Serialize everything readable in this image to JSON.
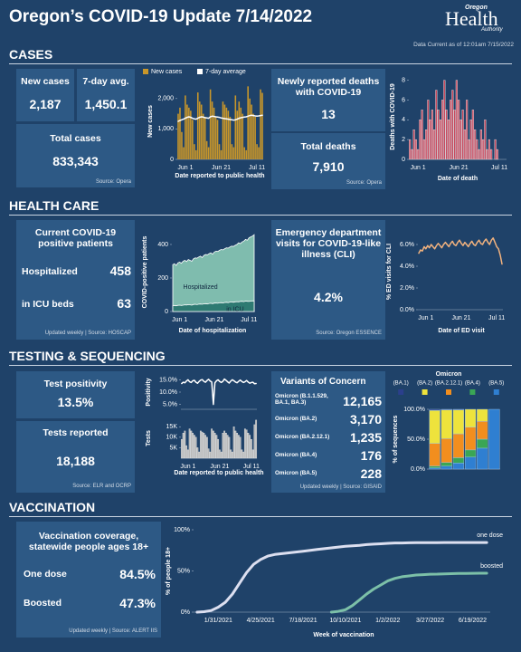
{
  "header": {
    "title": "Oregon’s COVID-19 Update 7/14/2022",
    "logo": [
      "Oregon",
      "Health",
      "Authority"
    ],
    "data_current": "Data Current as of 12:01am 7/15/2022"
  },
  "cases": {
    "heading": "CASES",
    "new_cases": {
      "label": "New cases",
      "value": "2,187"
    },
    "avg": {
      "label": "7-day avg.",
      "value": "1,450.1"
    },
    "total": {
      "label": "Total cases",
      "value": "833,343"
    },
    "source": "Source: Opera",
    "chart": {
      "type": "bar-line",
      "y_label": "New cases",
      "x_label": "Date reported to public health",
      "categories": [
        null,
        null,
        null,
        null,
        "Jun 1",
        null,
        null,
        null,
        null,
        null,
        null,
        null,
        null,
        null,
        null,
        null,
        null,
        null,
        null,
        null,
        null,
        null,
        null,
        null,
        "Jun 21",
        null,
        null,
        null,
        null,
        null,
        null,
        null,
        null,
        null,
        null,
        null,
        null,
        null,
        null,
        null,
        null,
        null,
        null,
        null,
        "Jul 11",
        null,
        null,
        null
      ],
      "ylim": [
        0,
        2500
      ],
      "yticks": [
        0,
        {
          "value": 1000,
          "label": "1,000"
        },
        {
          "value": 2000,
          "label": "2,000"
        }
      ],
      "series": [
        {
          "name": "New cases",
          "color": "#c8962a",
          "values": [
            1500,
            1700,
            900,
            400,
            2100,
            1800,
            1700,
            1600,
            1300,
            500,
            300,
            2200,
            1900,
            1800,
            1500,
            1400,
            600,
            400,
            2300,
            1900,
            1700,
            1400,
            1300,
            500,
            300,
            1900,
            1800,
            1700,
            1600,
            1400,
            500,
            400,
            2100,
            1600,
            1900,
            1700,
            1500,
            400,
            300,
            2400,
            2000,
            1800,
            1500,
            1400,
            500,
            400,
            2300,
            2187
          ]
        },
        {
          "name": "7-day average",
          "color": "#ffffff",
          "values": [
            1250,
            1280,
            1300,
            1320,
            1350,
            1380,
            1400,
            1380,
            1350,
            1330,
            1320,
            1350,
            1380,
            1400,
            1390,
            1370,
            1360,
            1350,
            1400,
            1420,
            1410,
            1400,
            1390,
            1380,
            1360,
            1350,
            1340,
            1330,
            1320,
            1310,
            1300,
            1290,
            1300,
            1320,
            1350,
            1370,
            1380,
            1390,
            1400,
            1420,
            1440,
            1450,
            1440,
            1430,
            1420,
            1430,
            1440,
            1450.1
          ]
        }
      ]
    },
    "deaths": {
      "new": {
        "label": "Newly reported deaths with COVID-19",
        "value": "13"
      },
      "total": {
        "label": "Total deaths",
        "value": "7,910"
      },
      "source": "Source: Opera"
    },
    "deaths_chart": {
      "type": "bar",
      "y_label": "Deaths with COVID-19",
      "x_label": "Date of death",
      "categories": [
        null,
        null,
        null,
        null,
        "Jun 1",
        null,
        null,
        null,
        null,
        null,
        null,
        null,
        null,
        null,
        null,
        null,
        null,
        null,
        null,
        null,
        null,
        null,
        null,
        null,
        "Jun 21",
        null,
        null,
        null,
        null,
        null,
        null,
        null,
        null,
        null,
        null,
        null,
        null,
        null,
        null,
        null,
        null,
        null,
        null,
        null,
        "Jul 11",
        null,
        null,
        null
      ],
      "ylim": [
        0,
        8.6
      ],
      "yticks": [
        0,
        2,
        4,
        6,
        8
      ],
      "color": "#c9495e",
      "values": [
        2,
        1,
        3,
        2,
        1,
        4,
        5,
        2,
        3,
        6,
        4,
        5,
        3,
        7,
        5,
        4,
        6,
        8,
        5,
        4,
        6,
        7,
        5,
        8,
        6,
        4,
        5,
        3,
        6,
        2,
        4,
        5,
        3,
        2,
        1,
        3,
        2,
        4,
        1,
        2,
        1,
        0,
        2,
        1,
        0,
        0,
        0,
        0
      ]
    }
  },
  "health": {
    "heading": "HEALTH CARE",
    "patients": {
      "title": "Current COVID-19 positive patients",
      "hospitalized": {
        "label": "Hospitalized",
        "value": "458"
      },
      "icu": {
        "label": "in ICU beds",
        "value": "63"
      },
      "source": "Updated weekly | Source: HOSCAP"
    },
    "hosp_chart": {
      "type": "area",
      "y_label": "COVID-positive patients",
      "x_label": "Date of hospitalization",
      "categories": [
        null,
        null,
        null,
        null,
        "Jun 1",
        null,
        null,
        null,
        null,
        null,
        null,
        null,
        null,
        null,
        null,
        null,
        null,
        null,
        null,
        null,
        null,
        null,
        null,
        null,
        "Jun 21",
        null,
        null,
        null,
        null,
        null,
        null,
        null,
        null,
        null,
        null,
        null,
        null,
        null,
        null,
        null,
        null,
        null,
        null,
        null,
        "Jul 11",
        null,
        null,
        null
      ],
      "ylim": [
        0,
        470
      ],
      "yticks": [
        0,
        200,
        400
      ],
      "series": [
        {
          "name": "Hospitalized",
          "color": "#7fbcae",
          "values": [
            280,
            285,
            275,
            290,
            295,
            288,
            300,
            305,
            298,
            310,
            305,
            300,
            315,
            320,
            318,
            325,
            330,
            322,
            335,
            340,
            338,
            345,
            350,
            342,
            355,
            360,
            358,
            365,
            370,
            368,
            375,
            380,
            378,
            385,
            390,
            388,
            395,
            400,
            410,
            405,
            415,
            420,
            430,
            425,
            440,
            445,
            450,
            458
          ]
        },
        {
          "name": "in ICU",
          "color": "#2e7a72",
          "values": [
            35,
            36,
            34,
            37,
            38,
            36,
            38,
            40,
            39,
            41,
            40,
            38,
            42,
            43,
            41,
            44,
            45,
            43,
            46,
            47,
            45,
            48,
            49,
            47,
            50,
            51,
            49,
            52,
            53,
            51,
            54,
            55,
            53,
            56,
            57,
            55,
            58,
            59,
            58,
            60,
            61,
            59,
            62,
            61,
            60,
            62,
            63,
            63
          ]
        }
      ]
    },
    "ed": {
      "title": "Emergency department visits for COVID-19-like illness (CLI)",
      "value": "4.2%",
      "source": "Source: Oregon ESSENCE"
    },
    "ed_chart": {
      "type": "line",
      "y_label": "% ED visits for CLI",
      "x_label": "Date of ED visit",
      "categories": [
        null,
        null,
        null,
        null,
        "Jun 1",
        null,
        null,
        null,
        null,
        null,
        null,
        null,
        null,
        null,
        null,
        null,
        null,
        null,
        null,
        null,
        null,
        null,
        null,
        null,
        "Jun 21",
        null,
        null,
        null,
        null,
        null,
        null,
        null,
        null,
        null,
        null,
        null,
        null,
        null,
        null,
        null,
        null,
        null,
        null,
        null,
        "Jul 11",
        null,
        null,
        null
      ],
      "ylim": [
        0,
        7
      ],
      "yticks": [
        {
          "value": 0,
          "label": "0.0%"
        },
        {
          "value": 2,
          "label": "2.0%"
        },
        {
          "value": 4,
          "label": "4.0%"
        },
        {
          "value": 6,
          "label": "6.0%"
        }
      ],
      "color": "#f2b27e",
      "values": [
        5.2,
        5.5,
        5.4,
        5.8,
        5.6,
        5.9,
        5.7,
        6.0,
        5.8,
        5.6,
        5.9,
        6.1,
        5.9,
        5.7,
        6.0,
        6.2,
        6.0,
        5.8,
        6.1,
        6.3,
        6.0,
        5.9,
        6.2,
        6.4,
        6.1,
        5.9,
        6.2,
        6.0,
        5.8,
        6.1,
        6.3,
        6.0,
        5.9,
        6.2,
        6.4,
        6.1,
        6.0,
        6.3,
        6.5,
        6.2,
        6.0,
        6.4,
        6.6,
        6.2,
        5.8,
        5.6,
        5.0,
        4.2
      ]
    }
  },
  "testing": {
    "heading": "TESTING & SEQUENCING",
    "positivity": {
      "label": "Test positivity",
      "value": "13.5%"
    },
    "tests": {
      "label": "Tests reported",
      "value": "18,188"
    },
    "source": "Source: ELR and OCRP",
    "positivity_chart": {
      "type": "line",
      "y_label": "Positivity",
      "categories": [
        null,
        null,
        null,
        null,
        null,
        null,
        null,
        null,
        null,
        null,
        null,
        null,
        null,
        null,
        null,
        null,
        null,
        null,
        null,
        null,
        null,
        null,
        null,
        null,
        null,
        null,
        null,
        null,
        null,
        null,
        null,
        null,
        null,
        null,
        null,
        null,
        null,
        null,
        null,
        null,
        null,
        null,
        null,
        null,
        null,
        null,
        null,
        null
      ],
      "ylim": [
        3,
        17
      ],
      "yticks": [
        {
          "value": 5,
          "label": "5.0%"
        },
        {
          "value": 10,
          "label": "10.0%"
        },
        {
          "value": 15,
          "label": "15.0%"
        }
      ],
      "color": "#ffffff",
      "values": [
        13.5,
        14.0,
        13.8,
        14.5,
        15.0,
        14.2,
        13.9,
        14.6,
        14.8,
        14.0,
        13.6,
        14.3,
        14.9,
        15.1,
        14.4,
        14.0,
        14.7,
        15.2,
        14.5,
        14.1,
        5.0,
        13.8,
        14.6,
        15.0,
        14.3,
        13.9,
        14.4,
        15.3,
        14.8,
        14.2,
        13.7,
        14.5,
        15.0,
        14.6,
        14.1,
        13.8,
        14.4,
        14.9,
        14.3,
        13.9,
        14.2,
        14.7,
        14.1,
        13.6,
        13.9,
        14.0,
        13.4,
        13.5
      ]
    },
    "tests_chart": {
      "type": "bar",
      "y_label": "Tests",
      "x_label": "Date reported to public health",
      "categories": [
        null,
        null,
        null,
        null,
        "Jun 1",
        null,
        null,
        null,
        null,
        null,
        null,
        null,
        null,
        null,
        null,
        null,
        null,
        null,
        null,
        null,
        null,
        null,
        null,
        null,
        "Jun 21",
        null,
        null,
        null,
        null,
        null,
        null,
        null,
        null,
        null,
        null,
        null,
        null,
        null,
        null,
        null,
        null,
        null,
        null,
        null,
        "Jul 11",
        null,
        null,
        null
      ],
      "ylim": [
        0,
        19000
      ],
      "yticks": [
        {
          "value": 5000,
          "label": "5K"
        },
        {
          "value": 10000,
          "label": "10K"
        },
        {
          "value": 15000,
          "label": "15K"
        }
      ],
      "color": "#b4b4b4",
      "values": [
        9000,
        12000,
        13000,
        6000,
        4000,
        14000,
        13000,
        12000,
        11000,
        10000,
        5000,
        3000,
        13000,
        12500,
        12000,
        11000,
        10000,
        4500,
        3000,
        14000,
        13000,
        12000,
        11000,
        9000,
        4000,
        3000,
        12000,
        13000,
        12000,
        11000,
        10000,
        4000,
        3000,
        15000,
        13000,
        12000,
        11000,
        10000,
        4000,
        3000,
        14000,
        13500,
        12000,
        11000,
        9000,
        4000,
        16000,
        18188
      ]
    },
    "variants": {
      "title": "Variants of Concern",
      "rows": [
        {
          "name": "Omicron (B.1.1.529, BA.1, BA.3)",
          "value": "12,165"
        },
        {
          "name": "Omicron (BA.2)",
          "value": "3,170"
        },
        {
          "name": "Omicron (BA.2.12.1)",
          "value": "1,235"
        },
        {
          "name": "Omicron (BA.4)",
          "value": "176"
        },
        {
          "name": "Omicron (BA.5)",
          "value": "228"
        }
      ],
      "source": "Updated weekly | Source: GISAID"
    },
    "variants_chart": {
      "type": "stacked-bar",
      "y_label": "% of sequences",
      "legend_title": "Omicron",
      "categories": [
        null,
        null,
        null,
        null,
        null,
        null
      ],
      "ylim": [
        0,
        100
      ],
      "yticks": [
        {
          "value": 0,
          "label": "0.0%"
        },
        {
          "value": 50,
          "label": "50.0%"
        },
        {
          "value": 100,
          "label": "100.0%"
        }
      ],
      "series": [
        {
          "name": "(BA.1)",
          "color": "#2b3f8c",
          "values": [
            2,
            1,
            1,
            0,
            0,
            0
          ]
        },
        {
          "name": "(BA.2)",
          "color": "#eee33c",
          "values": [
            55,
            48,
            40,
            30,
            20,
            0
          ]
        },
        {
          "name": "(BA.2.12.1)",
          "color": "#f28e1e",
          "values": [
            38,
            40,
            40,
            38,
            30,
            0
          ]
        },
        {
          "name": "(BA.4)",
          "color": "#3aa655",
          "values": [
            3,
            6,
            9,
            12,
            15,
            0
          ]
        },
        {
          "name": "(BA.5)",
          "color": "#2f7fd1",
          "values": [
            2,
            5,
            10,
            20,
            35,
            100
          ]
        }
      ]
    }
  },
  "vaccination": {
    "heading": "VACCINATION",
    "coverage": {
      "title": "Vaccination coverage, statewide people ages 18+",
      "one_dose": {
        "label": "One dose",
        "value": "84.5%"
      },
      "boosted": {
        "label": "Boosted",
        "value": "47.3%"
      },
      "source": "Updated weekly | Source: ALERT IIS"
    },
    "chart": {
      "type": "line",
      "y_label": "% of people 18+",
      "x_label": "Week of vaccination",
      "categories": [
        null,
        null,
        null,
        "1/31/2021",
        null,
        null,
        null,
        null,
        null,
        "4/25/2021",
        null,
        null,
        null,
        null,
        null,
        "7/18/2021",
        null,
        null,
        null,
        null,
        null,
        "10/10/2021",
        null,
        null,
        null,
        null,
        null,
        "1/2/2022",
        null,
        null,
        null,
        null,
        null,
        "3/27/2022",
        null,
        null,
        null,
        null,
        null,
        "6/19/2022",
        null,
        null
      ],
      "ylim": [
        0,
        100
      ],
      "yticks": [
        {
          "value": 0,
          "label": "0%"
        },
        {
          "value": 50,
          "label": "50%"
        },
        {
          "value": 100,
          "label": "100%"
        }
      ],
      "series": [
        {
          "name": "one dose",
          "color": "#dcdff0",
          "values": [
            0,
            0.5,
            2,
            6,
            12,
            22,
            35,
            48,
            58,
            64,
            68,
            70,
            71,
            72,
            73,
            74,
            75,
            76,
            77,
            78,
            79,
            80,
            80.5,
            81,
            82,
            82.5,
            83,
            83.5,
            84,
            84,
            84.2,
            84.3,
            84.4,
            84.4,
            84.4,
            84.5,
            84.5,
            84.5,
            84.5,
            84.5,
            84.5,
            84.5
          ]
        },
        {
          "name": "boosted",
          "color": "#7cc0a8",
          "values": [
            null,
            null,
            null,
            null,
            null,
            null,
            null,
            null,
            null,
            null,
            null,
            null,
            null,
            null,
            null,
            null,
            null,
            null,
            null,
            0,
            1,
            3,
            8,
            15,
            22,
            28,
            33,
            38,
            41,
            43,
            44,
            45,
            45.5,
            46,
            46.2,
            46.5,
            46.7,
            46.9,
            47,
            47.1,
            47.2,
            47.3
          ]
        }
      ]
    }
  }
}
